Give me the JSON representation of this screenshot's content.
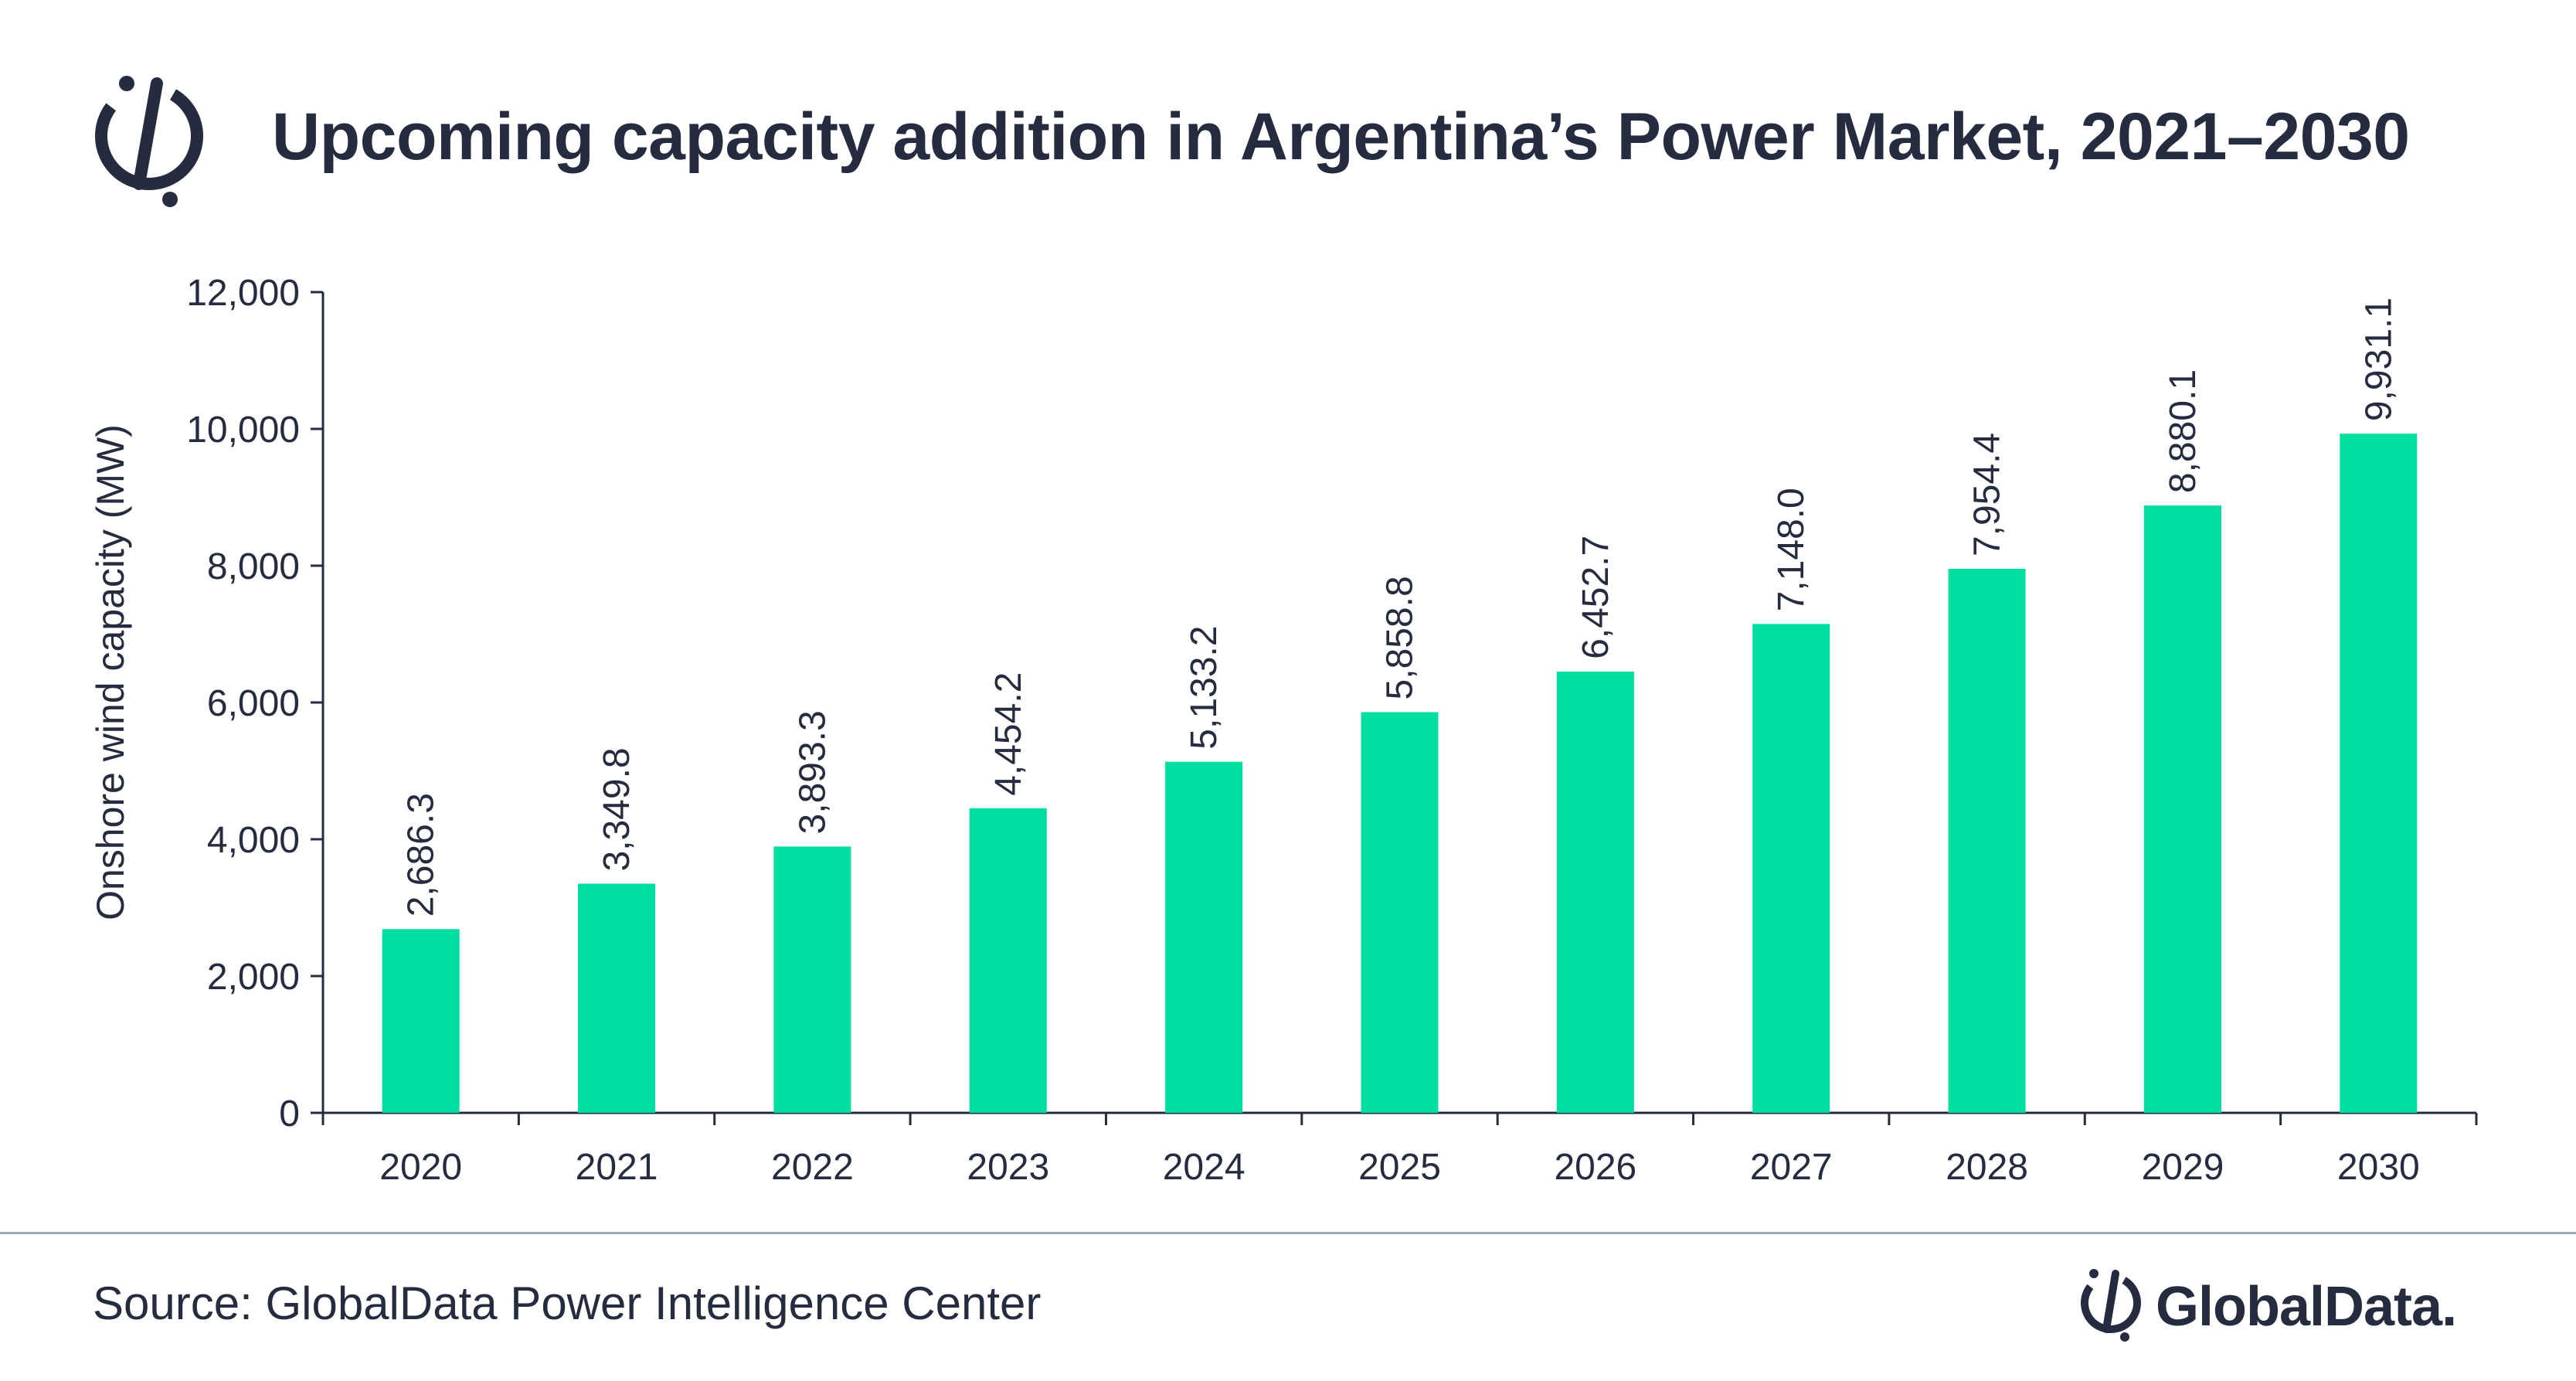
{
  "header": {
    "title": "Upcoming capacity addition in Argentina’s Power Market, 2021–2030",
    "logo_icon": "globaldata-mark-icon"
  },
  "footer": {
    "source": "Source: GlobalData Power Intelligence Center",
    "brand": "GlobalData."
  },
  "colors": {
    "bar": "#00dea0",
    "text": "#262c3f",
    "axis": "#262c3f",
    "divider": "#9aa9ba"
  },
  "chart_data": {
    "type": "bar",
    "title": "Upcoming capacity addition in Argentina’s Power Market, 2021–2030",
    "xlabel": "",
    "ylabel": "Onshore wind capacity (MW)",
    "ylim": [
      0,
      12000
    ],
    "yticks": [
      0,
      2000,
      4000,
      6000,
      8000,
      10000,
      12000
    ],
    "ytick_labels": [
      "0",
      "2,000",
      "4,000",
      "6,000",
      "8,000",
      "10,000",
      "12,000"
    ],
    "grid": false,
    "legend": "none",
    "categories": [
      "2020",
      "2021",
      "2022",
      "2023",
      "2024",
      "2025",
      "2026",
      "2027",
      "2028",
      "2029",
      "2030"
    ],
    "values": [
      2686.3,
      3349.8,
      3893.3,
      4454.2,
      5133.2,
      5858.8,
      6452.7,
      7148.0,
      7954.4,
      8880.1,
      9931.1
    ],
    "value_labels": [
      "2,686.3",
      "3,349.8",
      "3,893.3",
      "4,454.2",
      "5,133.2",
      "5,858.8",
      "6,452.7",
      "7,148.0",
      "7,954.4",
      "8,880.1",
      "9,931.1"
    ]
  }
}
